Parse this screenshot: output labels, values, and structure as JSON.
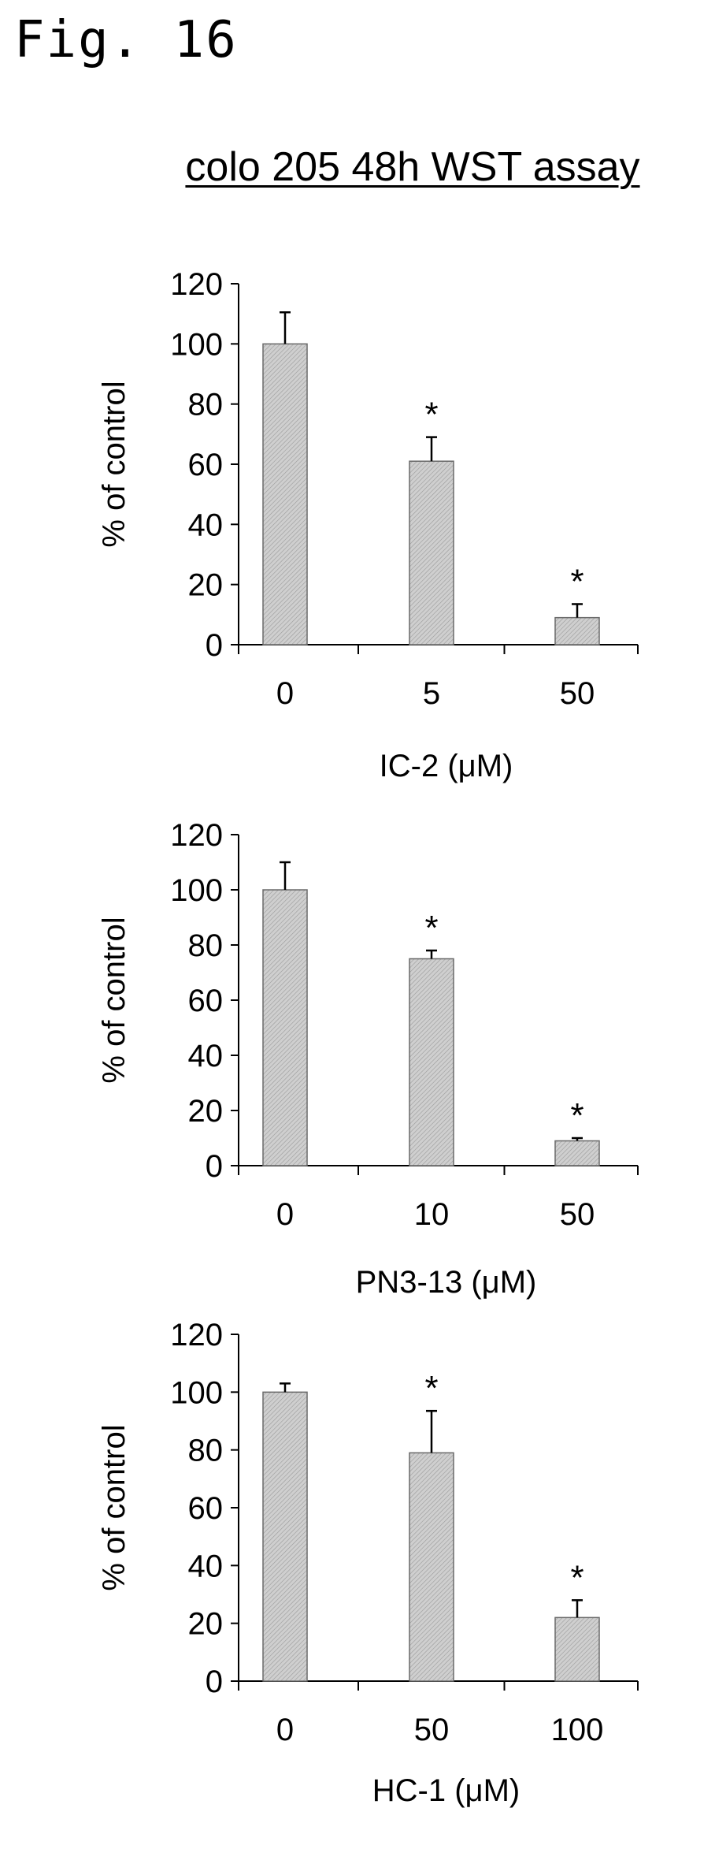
{
  "figure_label": "Fig. 16",
  "title": "colo 205 48h WST assay",
  "colors": {
    "bar_fill": "#cfcfcf",
    "bar_stroke": "#6a6a6a",
    "axis": "#000000"
  },
  "chart_data": [
    {
      "type": "bar",
      "categories": [
        "0",
        "5",
        "50"
      ],
      "values": [
        100,
        61,
        9
      ],
      "errors": [
        10.5,
        8,
        4.5
      ],
      "significance": [
        "",
        "*",
        "*"
      ],
      "xlabel": "IC-2 (μM)",
      "ylabel": "% of control",
      "ylim": [
        0,
        120
      ],
      "yticks": [
        0,
        20,
        40,
        60,
        80,
        100,
        120
      ]
    },
    {
      "type": "bar",
      "categories": [
        "0",
        "10",
        "50"
      ],
      "values": [
        100,
        75,
        9
      ],
      "errors": [
        10,
        3,
        1
      ],
      "significance": [
        "",
        "*",
        "*"
      ],
      "xlabel": "PN3-13 (μM)",
      "ylabel": "% of control",
      "ylim": [
        0,
        120
      ],
      "yticks": [
        0,
        20,
        40,
        60,
        80,
        100,
        120
      ]
    },
    {
      "type": "bar",
      "categories": [
        "0",
        "50",
        "100"
      ],
      "values": [
        100,
        79,
        22
      ],
      "errors": [
        3,
        14.5,
        6
      ],
      "significance": [
        "",
        "*",
        "*"
      ],
      "xlabel": "HC-1 (μM)",
      "ylabel": "% of control",
      "ylim": [
        0,
        120
      ],
      "yticks": [
        0,
        20,
        40,
        60,
        80,
        100,
        120
      ]
    }
  ]
}
